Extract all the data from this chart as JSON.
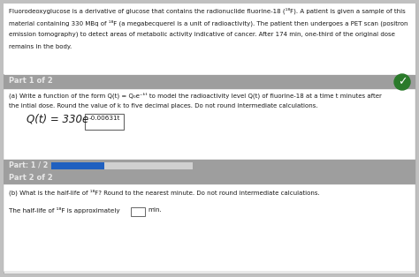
{
  "overall_bg": "#c0c0c0",
  "content_bg": "#f2f2f2",
  "header_bg": "#9e9e9e",
  "header_text": "#e8e8e8",
  "progress_bar_color": "#2060c0",
  "progress_bar_bg": "#d0d0d0",
  "check_circle_bg": "#2a7a2a",
  "white": "#ffffff",
  "dark_text": "#1a1a1a",
  "border_color": "#aaaaaa",
  "part1_label": "Part 1 of 2",
  "part_progress_label": "Part: 1 / 2",
  "part2_label": "Part 2 of 2",
  "intro_lines": [
    "Fluorodeoxyglucose is a derivative of glucose that contains the radionuclide fluorine-18 (¹⁸F). A patient is given a sample of this",
    "material containing 330 MBq of ¹⁸F (a megabecquerel is a unit of radioactivity). The patient then undergoes a PET scan (positron",
    "emission tomography) to detect areas of metabolic activity indicative of cancer. After 174 min, one-third of the original dose",
    "remains in the body."
  ],
  "q1_lines": [
    "(a) Write a function of the form Q(t) = Q₀e⁻ᵏᵗ to model the radioactivity level Q(t) of fluorine-18 at a time t minutes after",
    "the intial dose. Round the value of k to five decimal places. Do not round intermediate calculations."
  ],
  "answer_prefix": "Q(t) = 330e",
  "answer_exponent": "-0.00631t",
  "q2_text": "(b) What is the half-life of ¹⁸F? Round to the nearest minute. Do not round intermediate calculations.",
  "half_life_text1": "The half-life of ¹⁸F is approximately",
  "half_life_text2": "min."
}
